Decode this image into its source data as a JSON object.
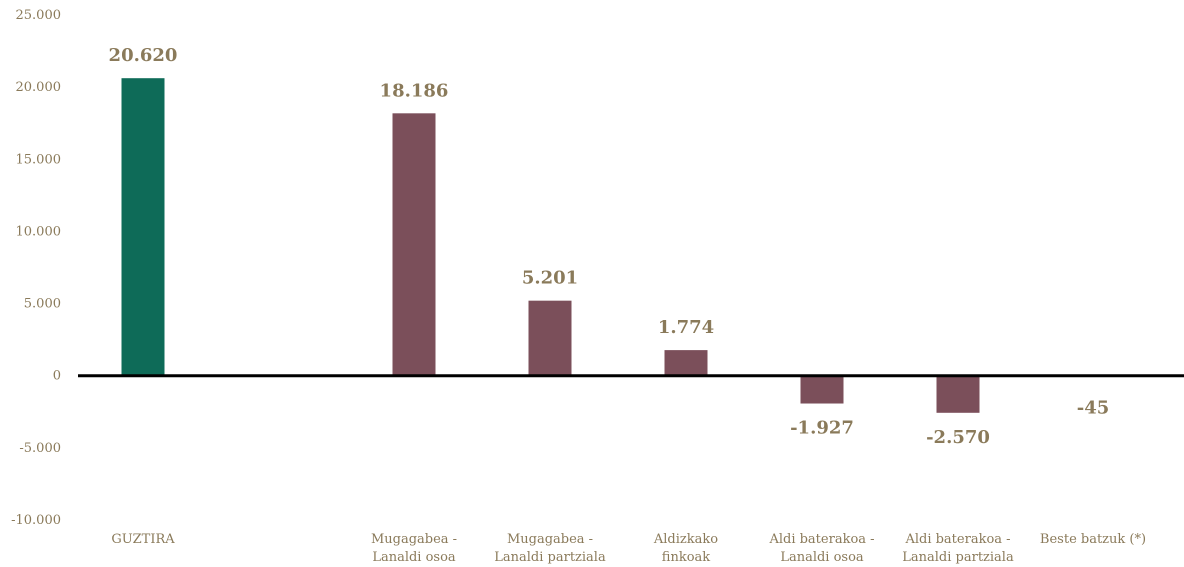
{
  "chart_data": {
    "type": "bar",
    "categories": [
      [
        "GUZTIRA"
      ],
      [
        ""
      ],
      [
        "Mugagabea -",
        "Lanaldi osoa"
      ],
      [
        "Mugagabea -",
        "Lanaldi partziala"
      ],
      [
        "Aldizkako",
        "finkoak"
      ],
      [
        "Aldi baterakoa -",
        "Lanaldi osoa"
      ],
      [
        "Aldi baterakoa -",
        "Lanaldi partziala"
      ],
      [
        "Beste batzuk (*)"
      ]
    ],
    "values": [
      20620,
      null,
      18186,
      5201,
      1774,
      -1927,
      -2570,
      -45
    ],
    "data_labels": [
      "20.620",
      "",
      "18.186",
      "5.201",
      "1.774",
      "-1.927",
      "-2.570",
      "-45"
    ],
    "bar_colors": [
      "#0e6b58",
      "#7b4f5a",
      "#7b4f5a",
      "#7b4f5a",
      "#7b4f5a",
      "#7b4f5a",
      "#7b4f5a",
      "#7b4f5a"
    ],
    "ylim": [
      -10000,
      25000
    ],
    "yticks": [
      25000,
      20000,
      15000,
      10000,
      5000,
      0,
      -5000,
      -10000
    ],
    "ytick_labels": [
      "25.000",
      "20.000",
      "15.000",
      "10.000",
      "5.000",
      "0",
      "-5.000",
      "-10.000"
    ],
    "grid": false,
    "legend": "none",
    "title": "",
    "xlabel": "",
    "ylabel": ""
  }
}
